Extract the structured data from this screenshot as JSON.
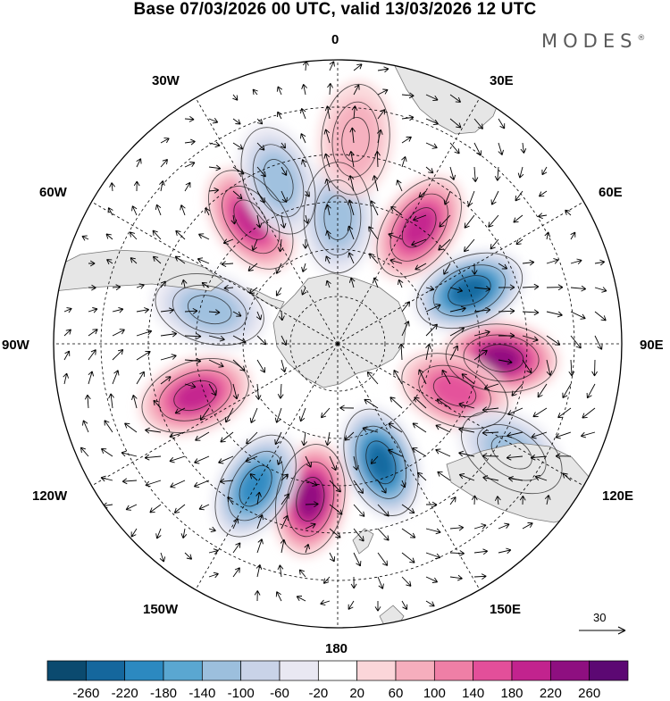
{
  "title": "Base 07/03/2026 00 UTC, valid 13/03/2026 12 UTC",
  "brand": "MODES",
  "brand_mark": "®",
  "longitude_labels": {
    "lon_0": "0",
    "lon_30e": "30E",
    "lon_60e": "60E",
    "lon_90e": "90E",
    "lon_120e": "120E",
    "lon_150e": "150E",
    "lon_180": "180",
    "lon_150w": "150W",
    "lon_120w": "120W",
    "lon_90w": "90W",
    "lon_60w": "60W",
    "lon_30w": "30W"
  },
  "vector_reference": {
    "value": "30"
  },
  "colorbar": {
    "colors": [
      "#0b4a6f",
      "#15679d",
      "#2c89c0",
      "#5aa7d1",
      "#9cbfdd",
      "#c9d3e8",
      "#e9e8f2",
      "#ffffff",
      "#fbd6d9",
      "#f6aebd",
      "#ef7fa6",
      "#e34f9a",
      "#c2238e",
      "#8e0f80",
      "#5c0873"
    ],
    "labels": [
      "-260",
      "-220",
      "-180",
      "-140",
      "-100",
      "-60",
      "-20",
      "20",
      "60",
      "100",
      "140",
      "180",
      "220",
      "260"
    ]
  },
  "anomaly_centers": [
    {
      "lon": -170,
      "lat": -40,
      "value": 240
    },
    {
      "lon": 160,
      "lat": -50,
      "value": -220
    },
    {
      "lon": 95,
      "lat": -38,
      "value": 230
    },
    {
      "lon": 68,
      "lat": -45,
      "value": -230
    },
    {
      "lon": 35,
      "lat": -45,
      "value": 200
    },
    {
      "lon": -35,
      "lat": -42,
      "value": 200
    },
    {
      "lon": -20,
      "lat": -35,
      "value": -120
    },
    {
      "lon": 0,
      "lat": -50,
      "value": -120
    },
    {
      "lon": -110,
      "lat": -42,
      "value": 190
    },
    {
      "lon": -150,
      "lat": -38,
      "value": -200
    },
    {
      "lon": -75,
      "lat": -48,
      "value": -110
    },
    {
      "lon": 5,
      "lat": -25,
      "value": 80
    },
    {
      "lon": 112,
      "lat": -50,
      "value": 160
    },
    {
      "lon": 122,
      "lat": -25,
      "value": -120
    }
  ]
}
